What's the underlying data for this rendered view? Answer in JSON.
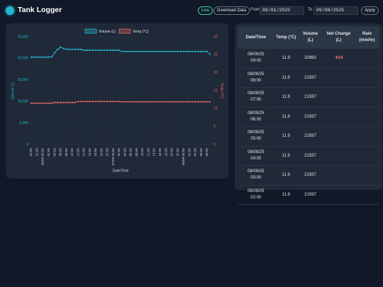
{
  "header": {
    "title": "Tank Logger",
    "live": "Live",
    "download": "Download Data",
    "from_label": "From",
    "from_date": "09/01/2025",
    "to_label": "To",
    "to_date": "09/08/2025",
    "apply": "Apply"
  },
  "chart_data": {
    "type": "line",
    "x_label": "Date/Time",
    "y_label": "Volume (L)",
    "y2_label": "Temp (°C)",
    "categories": [
      "20:00",
      null,
      "22:00",
      null,
      "06/09 00:00",
      null,
      "02:00",
      null,
      "04:00",
      null,
      "06:00",
      null,
      "08:00",
      null,
      "10:00",
      null,
      "12:00",
      null,
      "14:00",
      null,
      "16:00",
      null,
      "18:00",
      null,
      "20:00",
      null,
      "22:00",
      null,
      "07/09 00:00",
      null,
      "02:00",
      null,
      "04:00",
      null,
      "06:00",
      null,
      "08:00",
      null,
      "10:00",
      null,
      "12:00",
      null,
      "14:00",
      null,
      "16:00",
      null,
      "18:00",
      null,
      "20:00",
      null,
      "22:00",
      null,
      "08/09 00:00",
      null,
      "02:00",
      null,
      "04:00",
      null,
      "06:00",
      null,
      "08:00",
      null
    ],
    "series": [
      {
        "name": "Volume (L)",
        "color": "#22b8cf",
        "axis": "y",
        "values": [
          20300,
          20300,
          20300,
          20300,
          20300,
          20300,
          20300,
          20400,
          21300,
          22100,
          22600,
          22300,
          22100,
          22100,
          22100,
          22100,
          22100,
          22100,
          21900,
          21900,
          21900,
          21900,
          21900,
          21900,
          21900,
          21900,
          21900,
          21900,
          21900,
          21900,
          21900,
          21600,
          21600,
          21600,
          21600,
          21600,
          21600,
          21600,
          21600,
          21600,
          21600,
          21600,
          21600,
          21600,
          21600,
          21600,
          21600,
          21600,
          21600,
          21600,
          21600,
          21600,
          21600,
          21600,
          21597,
          21597,
          21597,
          21597,
          21597,
          21597,
          21597,
          20983
        ]
      },
      {
        "name": "Temp (°C)",
        "color": "#e06666",
        "axis": "y2",
        "values": [
          11.5,
          11.5,
          11.5,
          11.5,
          11.5,
          11.5,
          11.5,
          11.5,
          11.7,
          11.7,
          11.7,
          11.7,
          11.7,
          11.7,
          11.7,
          11.7,
          12.0,
          12.0,
          12.0,
          12.0,
          12.0,
          12.0,
          12.0,
          12.0,
          12.0,
          12.0,
          12.0,
          12.0,
          12.0,
          12.0,
          12.0,
          11.9,
          11.9,
          11.9,
          11.9,
          11.9,
          11.9,
          11.9,
          11.9,
          11.9,
          11.9,
          11.9,
          11.9,
          11.9,
          11.9,
          11.9,
          11.9,
          11.9,
          11.9,
          11.9,
          11.9,
          11.9,
          11.9,
          11.9,
          11.9,
          11.9,
          11.9,
          11.9,
          11.9,
          11.9,
          11.9,
          11.9
        ]
      }
    ],
    "ylim": [
      0,
      25000
    ],
    "yticks": [
      0,
      {
        "value": 5000,
        "label": "5,000"
      },
      {
        "value": 10000,
        "label": "10,000"
      },
      {
        "value": 15000,
        "label": "15,000"
      },
      {
        "value": 20000,
        "label": "20,000"
      },
      {
        "value": 25000,
        "label": "25,000"
      }
    ],
    "y2lim": [
      0,
      30
    ],
    "y2ticks": [
      0,
      5,
      10,
      15,
      20,
      25,
      30
    ],
    "grid": true,
    "legend": "top"
  },
  "table": {
    "columns": [
      "Date/Time",
      "Temp (°C)",
      "Volume (L)",
      "Net Change (L)",
      "Rain (mm/hr)"
    ],
    "rows": [
      {
        "datetime": "08/09/25 09:00",
        "temp": 11.9,
        "volume": 20983,
        "net_change": -614
      },
      {
        "datetime": "08/09/25 08:00",
        "temp": 11.9,
        "volume": 21597
      },
      {
        "datetime": "08/09/25 07:00",
        "temp": 11.9,
        "volume": 21597
      },
      {
        "datetime": "08/09/25 06:00",
        "temp": 11.9,
        "volume": 21597
      },
      {
        "datetime": "08/09/25 05:00",
        "temp": 11.9,
        "volume": 21597
      },
      {
        "datetime": "08/09/25 04:00",
        "temp": 11.9,
        "volume": 21597
      },
      {
        "datetime": "08/09/25 03:00",
        "temp": 11.9,
        "volume": 21597
      },
      {
        "datetime": "08/09/25 02:00",
        "temp": 11.9,
        "volume": 21597
      }
    ]
  }
}
